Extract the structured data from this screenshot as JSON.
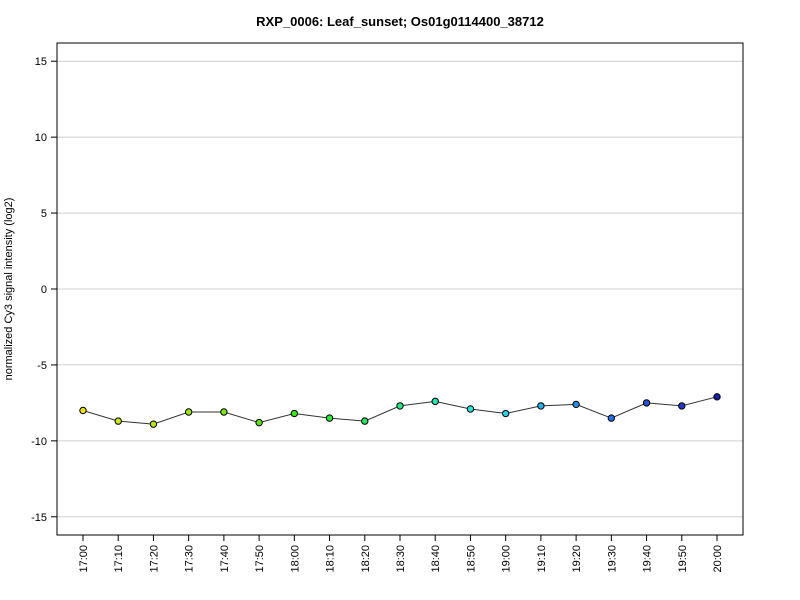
{
  "chart_data": {
    "type": "line",
    "title": "RXP_0006: Leaf_sunset; Os01g0114400_38712",
    "xlabel": "",
    "ylabel": "normalized Cy3 signal intensity (log2)",
    "ylim": [
      -16.2,
      16.2
    ],
    "yticks": [
      -15,
      -10,
      -5,
      0,
      5,
      10,
      15
    ],
    "grid": "horizontal",
    "categories": [
      "17:00",
      "17:10",
      "17:20",
      "17:30",
      "17:40",
      "17:50",
      "18:00",
      "18:10",
      "18:20",
      "18:30",
      "18:40",
      "18:50",
      "19:00",
      "19:10",
      "19:20",
      "19:30",
      "19:40",
      "19:50",
      "20:00"
    ],
    "values": [
      -8.0,
      -8.7,
      -8.9,
      -8.1,
      -8.1,
      -8.8,
      -8.2,
      -8.5,
      -8.7,
      -7.7,
      -7.4,
      -7.9,
      -8.2,
      -7.7,
      -7.6,
      -8.5,
      -7.5,
      -7.7,
      -7.1
    ],
    "point_colors": [
      "#e6e619",
      "#cde619",
      "#b9e619",
      "#9fe619",
      "#7ce619",
      "#5ae619",
      "#3de619",
      "#2ee636",
      "#26e660",
      "#26e689",
      "#26e6b3",
      "#26e6d8",
      "#26d2e6",
      "#26b0e6",
      "#2690e6",
      "#266ee6",
      "#2650d6",
      "#2636c2",
      "#1a1ab0"
    ]
  }
}
